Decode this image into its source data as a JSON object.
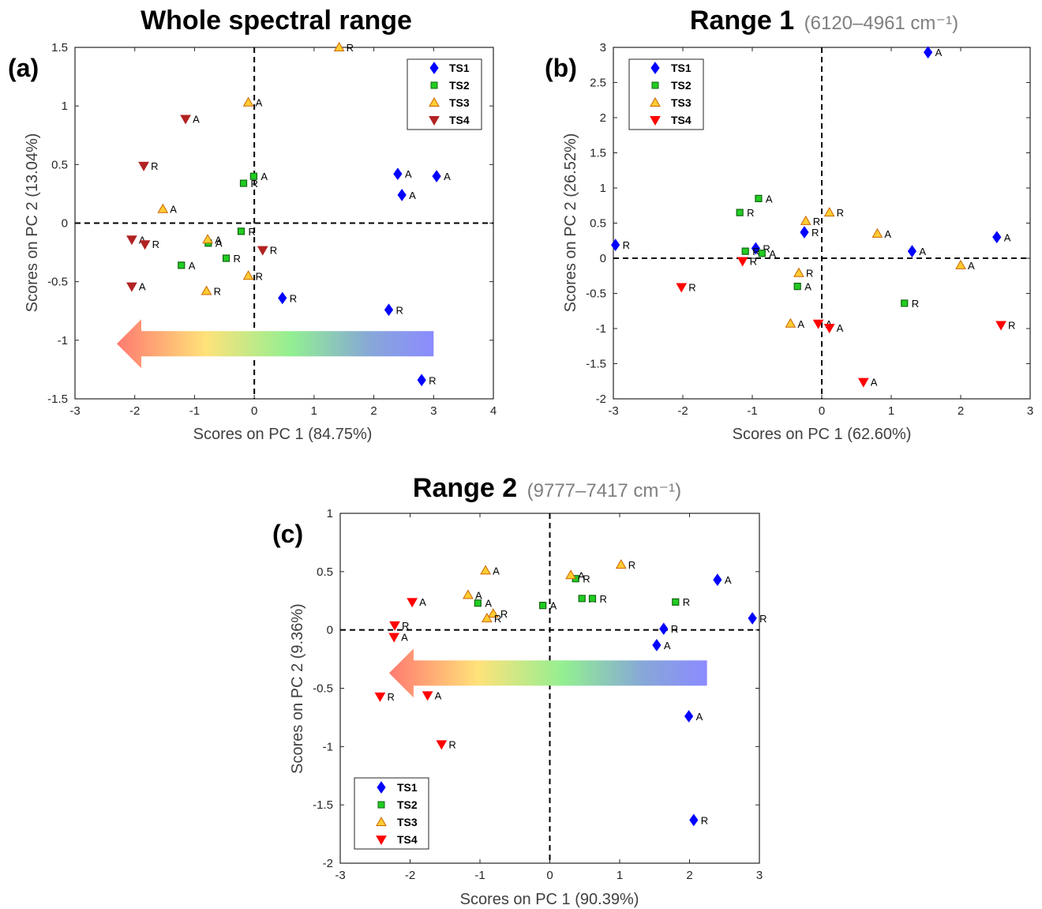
{
  "colors": {
    "TS1": "#0000ff",
    "TS2": "#22cc22",
    "TS3": "#ffcc33",
    "TS3_edge": "#cc6600",
    "TS4_a": "#b22222",
    "TS4_bc": "#ff0000"
  },
  "chart_data": [
    {
      "panel_label": "(a)",
      "type": "scatter",
      "title": "Whole spectral range",
      "subtitle": "",
      "xlabel": "Scores on PC 1 (84.75%)",
      "ylabel": "Scores on PC 2 (13.04%)",
      "xlim": [
        -3,
        4
      ],
      "ylim": [
        -1.5,
        1.5
      ],
      "xticks": [
        "-3",
        "-2",
        "-1",
        "0",
        "1",
        "2",
        "3",
        "4"
      ],
      "yticks": [
        "-1.5",
        "-1",
        "-0.5",
        "0",
        "0.5",
        "1",
        "1.5"
      ],
      "legend": {
        "placement": "top-right",
        "entries": [
          "TS1",
          "TS2",
          "TS3",
          "TS4"
        ]
      },
      "arrow": {
        "direction": "left",
        "from_x": 3.0,
        "to_x": -2.3,
        "y": -1.03
      },
      "series": [
        {
          "name": "TS1",
          "marker": "diamond",
          "points": [
            {
              "x": 2.4,
              "y": 0.42,
              "label": "A"
            },
            {
              "x": 3.05,
              "y": 0.4,
              "label": "A"
            },
            {
              "x": 2.47,
              "y": 0.24,
              "label": "A"
            },
            {
              "x": 0.47,
              "y": -0.64,
              "label": "R"
            },
            {
              "x": 2.25,
              "y": -0.74,
              "label": "R"
            },
            {
              "x": 2.8,
              "y": -1.34,
              "label": "R"
            }
          ]
        },
        {
          "name": "TS2",
          "marker": "square",
          "points": [
            {
              "x": -0.01,
              "y": 0.4,
              "label": "A"
            },
            {
              "x": -0.18,
              "y": 0.34,
              "label": "R"
            },
            {
              "x": -0.22,
              "y": -0.07,
              "label": "R"
            },
            {
              "x": -0.77,
              "y": -0.17,
              "label": "A"
            },
            {
              "x": -0.47,
              "y": -0.3,
              "label": "R"
            },
            {
              "x": -1.22,
              "y": -0.36,
              "label": "A"
            }
          ]
        },
        {
          "name": "TS3",
          "marker": "triangle-up",
          "points": [
            {
              "x": 1.42,
              "y": 1.5,
              "label": "R"
            },
            {
              "x": -0.1,
              "y": 1.03,
              "label": "A"
            },
            {
              "x": -1.53,
              "y": 0.12,
              "label": "A"
            },
            {
              "x": -0.78,
              "y": -0.14,
              "label": "A"
            },
            {
              "x": -0.1,
              "y": -0.45,
              "label": "R"
            },
            {
              "x": -0.8,
              "y": -0.58,
              "label": "R"
            }
          ]
        },
        {
          "name": "TS4",
          "marker": "triangle-down",
          "points": [
            {
              "x": -1.15,
              "y": 0.89,
              "label": "A"
            },
            {
              "x": -1.85,
              "y": 0.49,
              "label": "R"
            },
            {
              "x": -2.05,
              "y": -0.14,
              "label": "A"
            },
            {
              "x": -1.83,
              "y": -0.18,
              "label": "R"
            },
            {
              "x": 0.14,
              "y": -0.23,
              "label": "R"
            },
            {
              "x": -2.05,
              "y": -0.54,
              "label": "A"
            }
          ]
        }
      ]
    },
    {
      "panel_label": "(b)",
      "type": "scatter",
      "title": "Range 1",
      "subtitle": "(6120–4961 cm⁻¹)",
      "xlabel": "Scores on PC 1 (62.60%)",
      "ylabel": "Scores on PC 2 (26.52%)",
      "xlim": [
        -3,
        3
      ],
      "ylim": [
        -2,
        3
      ],
      "xticks": [
        "-3",
        "-2",
        "-1",
        "0",
        "1",
        "2",
        "3"
      ],
      "yticks": [
        "-2",
        "-1.5",
        "-1",
        "-0.5",
        "0",
        "0.5",
        "1",
        "1.5",
        "2",
        "2.5",
        "3"
      ],
      "legend": {
        "placement": "top-left",
        "entries": [
          "TS1",
          "TS2",
          "TS3",
          "TS4"
        ]
      },
      "series": [
        {
          "name": "TS1",
          "marker": "diamond",
          "points": [
            {
              "x": 1.53,
              "y": 2.93,
              "label": "A"
            },
            {
              "x": -2.97,
              "y": 0.19,
              "label": "R"
            },
            {
              "x": -0.25,
              "y": 0.37,
              "label": "R"
            },
            {
              "x": -0.95,
              "y": 0.14,
              "label": "R"
            },
            {
              "x": 1.3,
              "y": 0.1,
              "label": "A"
            },
            {
              "x": 2.52,
              "y": 0.3,
              "label": "A"
            }
          ]
        },
        {
          "name": "TS2",
          "marker": "square",
          "points": [
            {
              "x": -0.91,
              "y": 0.85,
              "label": "A"
            },
            {
              "x": -1.18,
              "y": 0.65,
              "label": "R"
            },
            {
              "x": -1.1,
              "y": 0.1,
              "label": "R"
            },
            {
              "x": -0.86,
              "y": 0.07,
              "label": "A"
            },
            {
              "x": -0.35,
              "y": -0.4,
              "label": "A"
            },
            {
              "x": 1.19,
              "y": -0.64,
              "label": "R"
            }
          ]
        },
        {
          "name": "TS3",
          "marker": "triangle-up",
          "points": [
            {
              "x": -0.23,
              "y": 0.53,
              "label": "R"
            },
            {
              "x": 0.11,
              "y": 0.65,
              "label": "R"
            },
            {
              "x": 0.8,
              "y": 0.35,
              "label": "A"
            },
            {
              "x": -0.33,
              "y": -0.21,
              "label": "R"
            },
            {
              "x": 2.0,
              "y": -0.1,
              "label": "A"
            },
            {
              "x": -0.45,
              "y": -0.93,
              "label": "A"
            }
          ]
        },
        {
          "name": "TS4",
          "marker": "triangle-down",
          "points": [
            {
              "x": -1.14,
              "y": -0.04,
              "label": "R"
            },
            {
              "x": -2.02,
              "y": -0.41,
              "label": "R"
            },
            {
              "x": -0.05,
              "y": -0.93,
              "label": "A"
            },
            {
              "x": 0.11,
              "y": -0.99,
              "label": "A"
            },
            {
              "x": 0.6,
              "y": -1.76,
              "label": "A"
            },
            {
              "x": 2.58,
              "y": -0.95,
              "label": "R"
            }
          ]
        }
      ]
    },
    {
      "panel_label": "(c)",
      "type": "scatter",
      "title": "Range 2",
      "subtitle": "(9777–7417 cm⁻¹)",
      "xlabel": "Scores on PC 1 (90.39%)",
      "ylabel": "Scores on PC 2 (9.36%)",
      "xlim": [
        -3,
        3
      ],
      "ylim": [
        -2,
        1
      ],
      "xticks": [
        "-3",
        "-2",
        "-1",
        "0",
        "1",
        "2",
        "3"
      ],
      "yticks": [
        "-2",
        "-1.5",
        "-1",
        "-0.5",
        "0",
        "0.5",
        "1"
      ],
      "legend": {
        "placement": "bottom-left",
        "entries": [
          "TS1",
          "TS2",
          "TS3",
          "TS4"
        ]
      },
      "arrow": {
        "direction": "left",
        "from_x": 2.25,
        "to_x": -2.3,
        "y": -0.37
      },
      "series": [
        {
          "name": "TS1",
          "marker": "diamond",
          "points": [
            {
              "x": 2.4,
              "y": 0.43,
              "label": "A"
            },
            {
              "x": 2.9,
              "y": 0.1,
              "label": "R"
            },
            {
              "x": 1.63,
              "y": 0.01,
              "label": "R"
            },
            {
              "x": 1.53,
              "y": -0.13,
              "label": "A"
            },
            {
              "x": 1.99,
              "y": -0.74,
              "label": "A"
            },
            {
              "x": 2.06,
              "y": -1.63,
              "label": "R"
            }
          ]
        },
        {
          "name": "TS2",
          "marker": "square",
          "points": [
            {
              "x": 0.37,
              "y": 0.44,
              "label": "R"
            },
            {
              "x": 0.46,
              "y": 0.27,
              "label": "A"
            },
            {
              "x": 0.61,
              "y": 0.27,
              "label": "R"
            },
            {
              "x": 1.8,
              "y": 0.24,
              "label": "R"
            },
            {
              "x": -1.03,
              "y": 0.23,
              "label": "A"
            },
            {
              "x": -0.1,
              "y": 0.21,
              "label": "A"
            }
          ]
        },
        {
          "name": "TS3",
          "marker": "triangle-up",
          "points": [
            {
              "x": -0.92,
              "y": 0.51,
              "label": "A"
            },
            {
              "x": 0.3,
              "y": 0.47,
              "label": "A"
            },
            {
              "x": 1.02,
              "y": 0.56,
              "label": "R"
            },
            {
              "x": -1.17,
              "y": 0.3,
              "label": "A"
            },
            {
              "x": -0.81,
              "y": 0.14,
              "label": "R"
            },
            {
              "x": -0.9,
              "y": 0.1,
              "label": "R"
            }
          ]
        },
        {
          "name": "TS4",
          "marker": "triangle-down",
          "points": [
            {
              "x": -1.97,
              "y": 0.24,
              "label": "A"
            },
            {
              "x": -2.22,
              "y": 0.04,
              "label": "R"
            },
            {
              "x": -2.23,
              "y": -0.06,
              "label": "A"
            },
            {
              "x": -2.43,
              "y": -0.57,
              "label": "R"
            },
            {
              "x": -1.75,
              "y": -0.56,
              "label": "A"
            },
            {
              "x": -1.55,
              "y": -0.98,
              "label": "R"
            }
          ]
        }
      ]
    }
  ]
}
